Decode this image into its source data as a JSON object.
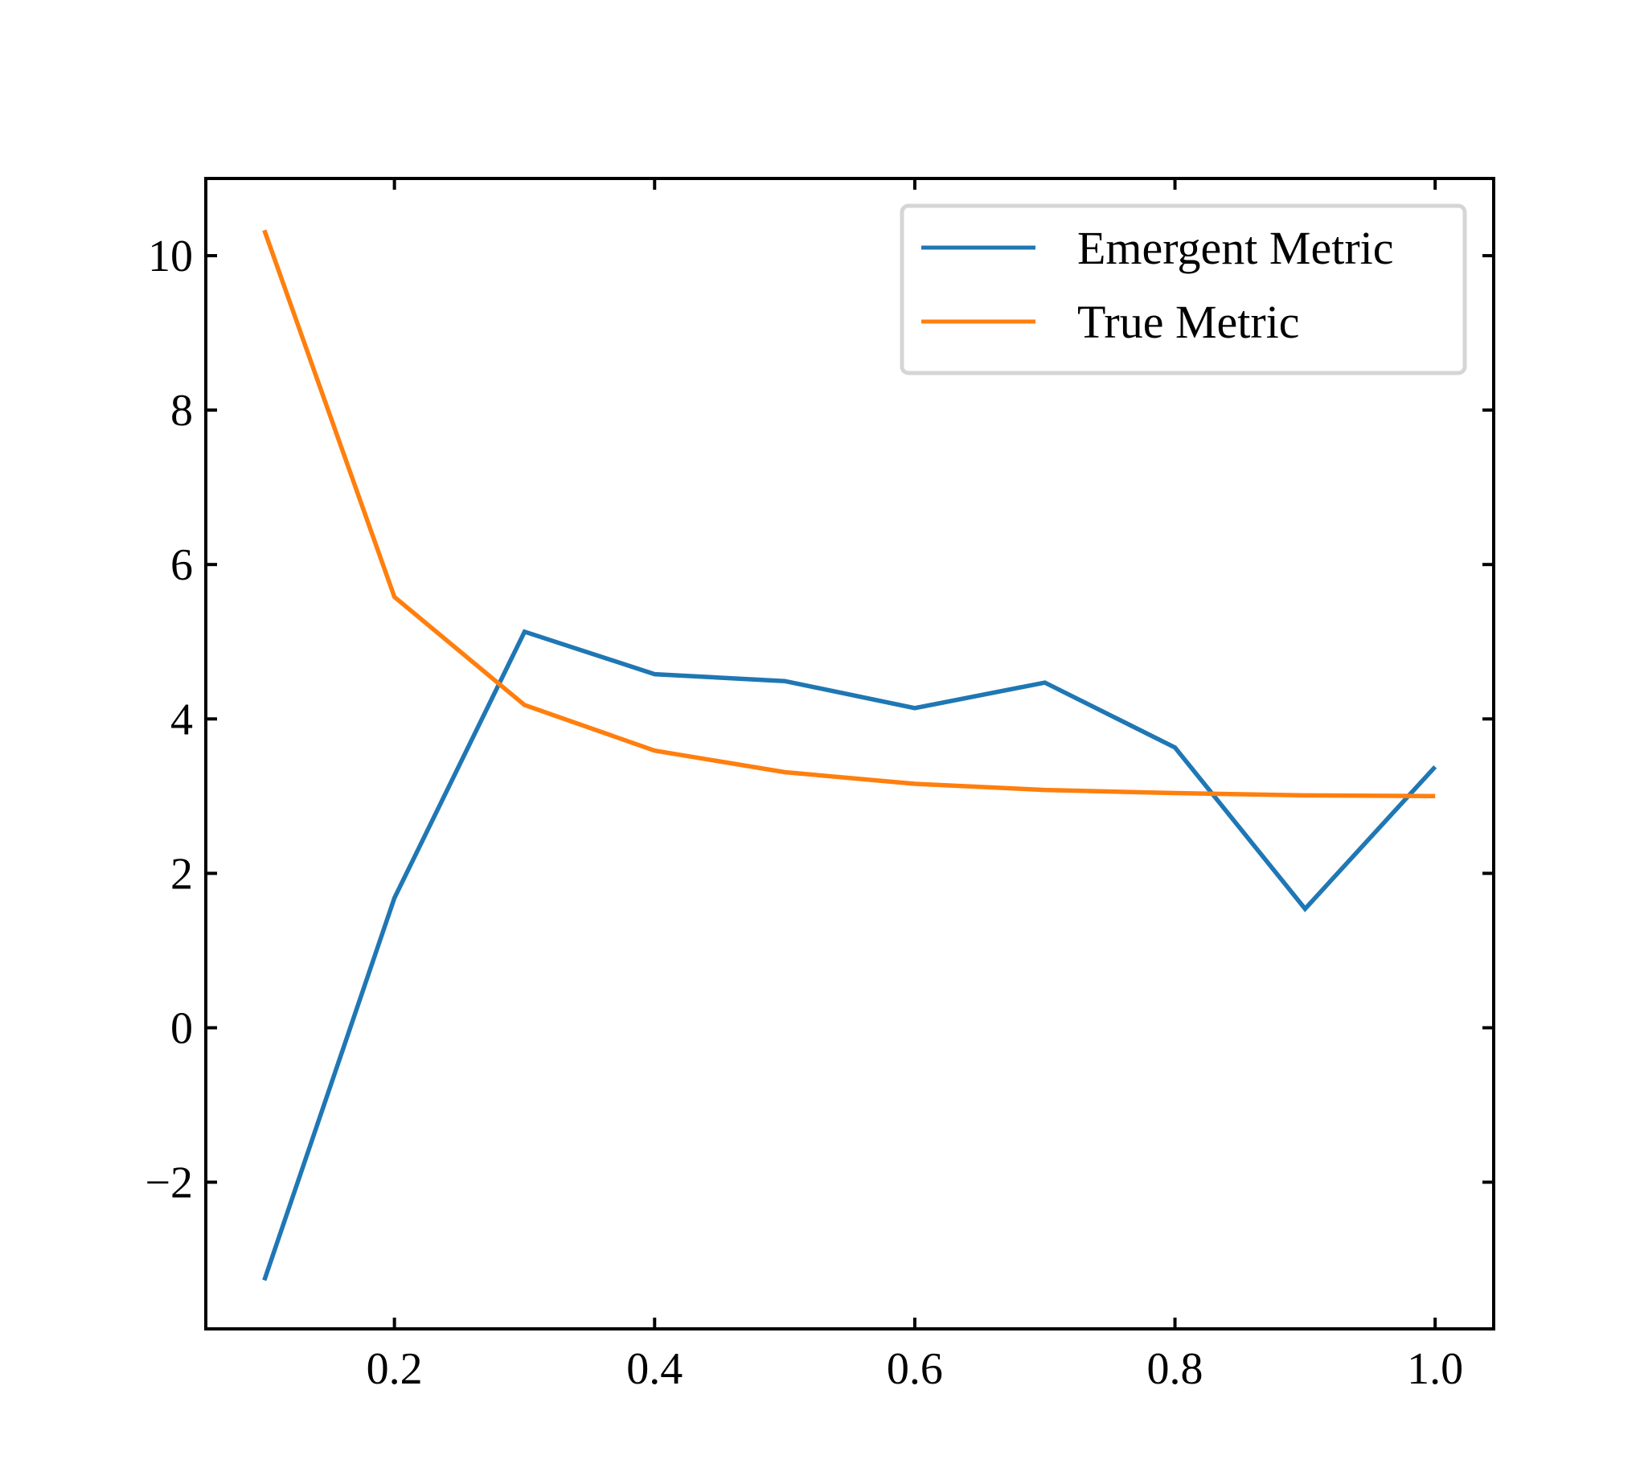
{
  "chart_data": {
    "type": "line",
    "title": "",
    "xlabel": "",
    "ylabel": "",
    "xlim": [
      0.055,
      1.045
    ],
    "ylim": [
      -3.9,
      11.0
    ],
    "x": [
      0.1,
      0.2,
      0.3,
      0.4,
      0.5,
      0.6,
      0.7,
      0.8,
      0.9,
      1.0
    ],
    "x_ticks": [
      0.2,
      0.4,
      0.6,
      0.8,
      1.0
    ],
    "x_tick_labels": [
      "0.2",
      "0.4",
      "0.6",
      "0.8",
      "1.0"
    ],
    "y_ticks": [
      -2,
      0,
      2,
      4,
      6,
      8,
      10
    ],
    "y_tick_labels": [
      "−2",
      "0",
      "2",
      "4",
      "6",
      "8",
      "10"
    ],
    "grid": false,
    "legend_position": "top-right",
    "series": [
      {
        "name": "Emergent Metric",
        "color": "#1f77b4",
        "values": [
          -3.27,
          1.68,
          5.13,
          4.58,
          4.49,
          4.14,
          4.47,
          3.63,
          1.54,
          3.38
        ]
      },
      {
        "name": "True Metric",
        "color": "#ff7f0e",
        "values": [
          10.33,
          5.58,
          4.18,
          3.59,
          3.31,
          3.16,
          3.08,
          3.04,
          3.01,
          3.0
        ]
      }
    ]
  }
}
